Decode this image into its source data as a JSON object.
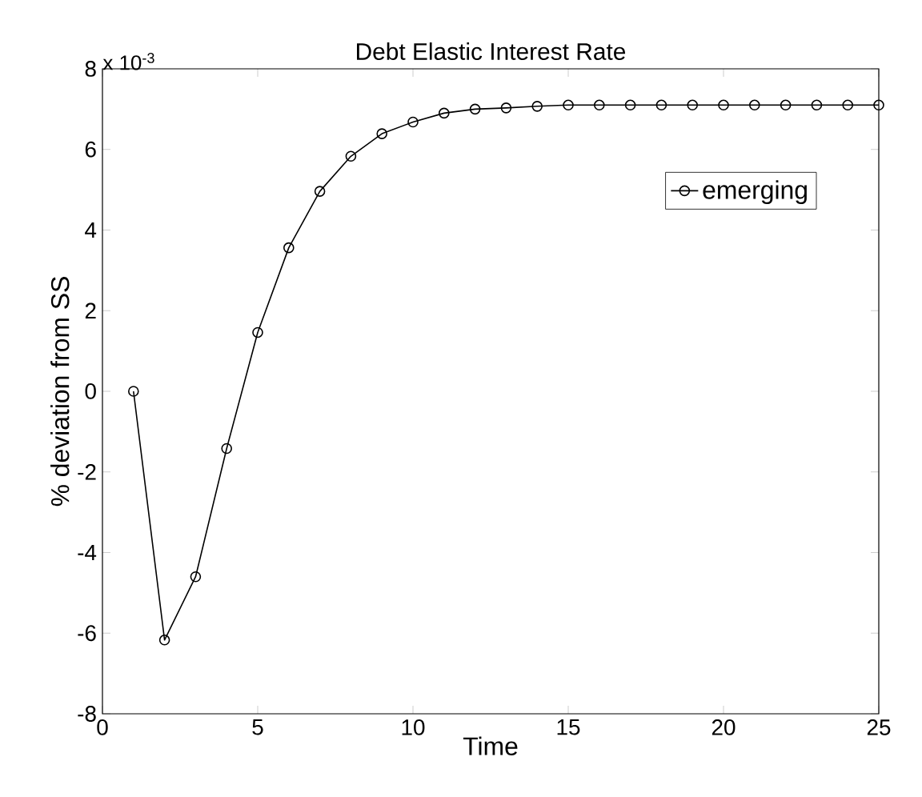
{
  "chart_data": {
    "type": "line",
    "title": "Debt Elastic Interest Rate",
    "xlabel": "Time",
    "ylabel": "% deviation from SS",
    "annotations": [
      "x 10$^{-3}$"
    ],
    "x": [
      1,
      2,
      3,
      4,
      5,
      6,
      7,
      8,
      9,
      10,
      11,
      12,
      13,
      14,
      15,
      16,
      17,
      18,
      19,
      20,
      21,
      22,
      23,
      24,
      25
    ],
    "series": [
      {
        "name": "emerging",
        "color": "#000000",
        "values": [
          0,
          -6.17,
          -4.6,
          -1.42,
          1.46,
          3.56,
          4.96,
          5.83,
          6.39,
          6.68,
          6.9,
          7.0,
          7.03,
          7.07,
          7.1,
          7.1,
          7.1,
          7.1,
          7.1,
          7.1,
          7.1,
          7.1,
          7.1,
          7.1,
          7.1
        ]
      }
    ],
    "xlim": [
      0,
      25
    ],
    "ylim": [
      -8,
      8
    ],
    "xticks": [
      0,
      5,
      10,
      15,
      20,
      25
    ],
    "yticks": [
      -8,
      -6,
      -4,
      -2,
      0,
      2,
      4,
      6,
      8
    ],
    "legend": "top right",
    "marker": "circle",
    "line_style": "solid"
  }
}
